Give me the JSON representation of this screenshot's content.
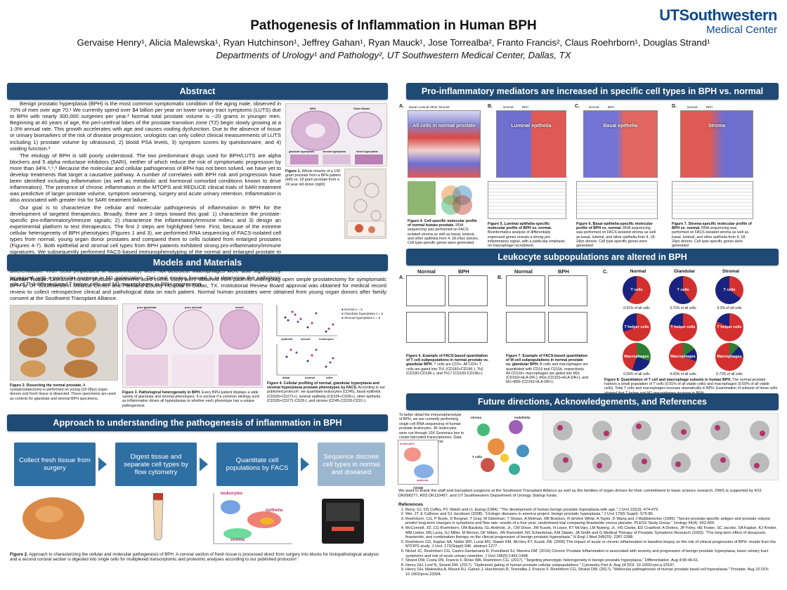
{
  "header": {
    "title": "Pathogenesis of Inflammation in Human BPH",
    "authors": "Gervaise Henry¹, Alicia Malewska¹, Ryan Hutchinson¹, Jeffrey Gahan¹, Ryan Mauck¹, Jose Torrealba², Franto Francis², Claus Roehrborn¹, Douglas Strand¹",
    "departments": "Departments of Urology¹ and Pathology², UT Southwestern Medical Center, Dallas, TX",
    "logo_line1": "UTSouthwestern",
    "logo_line2": "Medical Center"
  },
  "colors": {
    "banner": "#1f4a73",
    "flow": "#2e6fa4",
    "logo": "#0b4a8b"
  },
  "abstract": {
    "heading": "Abstract",
    "p1": "Benign prostatic hyperplasia (BPH) is the most common symptomatic condition of the aging male, observed in 70% of men over age 70.¹ We currently spend over $4 billion per year on lower urinary tract symptoms (LUTS) due to BPH with nearly 300,000 surgeries per year.² Normal total prostate volume is ~20 grams in younger men. Beginning at 40 years of age, the peri-urethral lobes of the prostate transition zone (TZ) begin slowly growing at a 1-3% annual rate. This growth accelerates with age and causes voiding dysfunction. Due to the absence of tissue or urinary biomarkers of the risk of disease progression, urologists can only collect clinical measurements of LUTS including 1) prostate volume by ultrasound, 2) blood PSA levels, 3) symptom scores by questionnaire, and 4) voiding function.³",
    "p2": "The etiology of BPH is still poorly understood. The two predominant drugs used for BPH/LUTS are alpha blockers and 5 alpha reductase inhibitors (5ARI), neither of which reduce the risk of symptomatic progression by more than 34%.⁴,⁵,⁶ Because the molecular and cellular pathogenesis of BPH has not been solved, we have yet to develop treatments that target a causative pathway. A number of correlates with BPH risk and progression have been identified including inflammation (as well as metabolic and hormonal comorbid conditions known to drive inflammation). The presence of chronic inflammation in the MTOPS and REDUCE clinical trials of 5ARI treatment was predictive of larger prostate volume, symptom worsening, surgery and acute urinary retention. Inflammation is also associated with greater risk for 5ARI treatment failure.",
    "p3": "Our goal is to characterize the cellular and molecular pathogenesis of inflammation in BPH for the development of targeted therapeutics. Broadly, there are 3 steps toward this goal: 1) characterize the prostate-specific pro-inflammatory/immune signals; 2) characterize the inflammatory/immune milieu; and 3) design an experimental platform to test therapeutics. The first 2 steps are highlighted here. First, because of the extreme cellular heterogeneity of BPH phenotypes (Figures 1 and 3), we performed RNA sequencing of FACS-isolated cell types from normal, young organ donor prostates and compared them to cells isolated from enlarged prostates (Figures 4-7). Both epithelial and stromal cell types from BPH patients exhibited strong pro-inflammatory/immune signatures. We subsequently performed FACS-based immunophenotyping of the normal and enlarged prostate to determine the percent composition of the pro-inflammatory mediators and the actual inflammatory/immune environment. These data show a significant increase in total CD4 T cells, with a particular increase in Th2 differentiation. Th17 cells (implicated in autoimmunity) were not detected. Macrophages were also significantly increased, with a particular increase in M1 polarization. Our goal moving forward is to determine the pathologic role of Th2 differentiated T helper cells and M1 macrophages in BPH progression.",
    "fig1_caption_bold": "Figure 1.",
    "fig1_caption": "Whole mounts of a 130 gram prostate from a BPH patient (left) vs. 18 gram prostate from a 24 year old donor (right)",
    "fig1_labels": [
      "glandular hyperplasia",
      "stromal hyperplasia",
      "BPH",
      "Older Model",
      "mixed hyperplasia"
    ]
  },
  "methods": {
    "heading": "Models and Materials",
    "tissue_label": "Human Tissue:",
    "tissue_text": "Diseased human prostate specimens used in this study were obtained from patients undergoing open simple prostatectomy for symptomatic BPH at UT Southwestern Medical Center and Parkland County Hospital in Dallas, TX. Institutional Review Board approval was obtained for medical record review to collect retrospective clinical and pathological data on each patient. Normal human prostates were obtained from young organ donors after family consent at the Southwest Transplant Alliance.",
    "fig2_caption_bold": "Figure 2. Dissecting the normal prostate.",
    "fig2_caption": "A cystoprostatectomy is performed on young (18-28yo) organ donors and fresh tissue is dissected. These specimens are used as controls for glandular and stromal BPH specimens.",
    "fig3_caption_bold": "Figure 3. Pathological heterogeneity in BPH.",
    "fig3_caption": "Every BPH patient displays a wide variety of glandular and stromal phenotypes. It is unclear if a common etiology such as inflammation drives all hyperplasias or whether each phenotype has a unique pathogenesis.",
    "fig3_labels": [
      "pure glandular",
      "pure stromal",
      "mixed"
    ],
    "fig4_caption_bold": "Figure 4. Cellular profiling of normal, glandular hyperplasia and stromal hyperplasia prostate phenotypes by FACS.",
    "fig4_caption": "According to our published protocol⁶, we quantitate leukocytes (CD45), basal epithelia (CD326+CD271+), luminal epithelia (CD326+CD26+), other epithelia (CD326+CD271-CD26-), and stroma (CD45-CD326-CD31-).",
    "legend": [
      "Normal n = 6",
      "Glandular hyperplasia n = 6",
      "Stromal hyperplasia n = 6"
    ],
    "chart_axes": [
      "epithelia",
      "stroma",
      "leukocytes",
      "basal",
      "luminal",
      "other"
    ]
  },
  "approach": {
    "heading": "Approach to understanding the pathogenesis of inflammation in BPH",
    "steps": [
      "Collect fresh tissue from surgery",
      "Digest tissue and separate cell types by flow cytometry",
      "Quantitate cell populations by FACS",
      "Sequence discrete cell types in normal and diseased"
    ],
    "facs_labels": [
      "leukocytes",
      "epithelia",
      "stroma"
    ],
    "fig_caption_bold": "Figure 2.",
    "fig_caption": "Approach to characterizing the cellular and molecular pathogenesis of BPH. A coronal section of fresh tissue is processed direct from surgery into blocks for histopathological analysis and a second coronal section is digested into single cells for multiplexed transcriptomic and proteomic analyses according to our published protocols⁶."
  },
  "mediators": {
    "heading": "Pro-inflammatory mediators are increased in specific cell types in BPH vs. normal",
    "panels": [
      {
        "letter": "A.",
        "cols": "Basal   Luminal   Other   Stromal",
        "overlay": "All cells in normal prostate"
      },
      {
        "letter": "B.",
        "cols": "Normal          BPH",
        "overlay": "Luminal epithelia"
      },
      {
        "letter": "C.",
        "cols": "Normal          BPH",
        "overlay": "Basal epithelia"
      },
      {
        "letter": "D.",
        "cols": "Normal          BPH",
        "overlay": "Stroma"
      }
    ],
    "captions": [
      {
        "bold": "Figure 4. Cell-specific molecular profile of normal human prostate.",
        "text": "RNA sequencing was performed on FACS-isolated stroma as well as basal, luminal, and other epithelia from 4, 18-24yo donors. Cell type-specific genes were generated"
      },
      {
        "bold": "Figure 5. Luminal epithelia-specific molecular profile of BPH vs. normal.",
        "text": "Bioinformatics analysis of differentially expressed genes reveals a strong pro-inflammatory signal, with a particular emphasis on macrophage recruitment."
      },
      {
        "bold": "Figure 6. Basal epithelia-specific molecular profile of BPH vs. normal.",
        "text": "RNA sequencing was performed on FACS-isolated stroma as well as basal, luminal, and other epithelia from 4, 18-24yo donors. Cell type-specific genes were generated"
      },
      {
        "bold": "Figure 7. Stroma-specific molecular profile of BPH vs. normal.",
        "text": "RNA sequencing was performed on FACS-isolated stroma as well as basal, luminal, and other epithelia from 4, 18-24yo donors. Cell type-specific genes were generated"
      }
    ]
  },
  "leukocytes": {
    "heading": "Leukocyte subpopulations are altered in BPH",
    "panelA": {
      "letter": "A.",
      "normal": "Normal",
      "bph": "BPH"
    },
    "panelB": {
      "letter": "B.",
      "normal": "Normal",
      "bph": "BPH"
    },
    "panelC": {
      "letter": "C.",
      "cols": [
        "Normal",
        "Glandular",
        "Stromal"
      ]
    },
    "pie_rows": [
      {
        "label": "T cells",
        "caps": [
          "0.91% of all cells",
          "3.72% of all cells",
          "6.3% of all cells"
        ]
      },
      {
        "label": "T helper cells",
        "caps": [
          "",
          "",
          ""
        ]
      },
      {
        "label": "Macrophages",
        "caps": [
          "0.59% of all cells",
          "4.43% of all cells",
          "6.73% of all cells"
        ]
      }
    ],
    "fig6_bold": "Figure 6. Example of FACS-based quantitation of T cell subpopulations in normal prostate vs. glandular BPH.",
    "fig6_text": "T cells are CD3+. All CD3+ T cells are gated into Th1 (CD183+CD196-), Th2 (CD183-CD196-), and Th17 (CD183-CD196+).",
    "fig7_bold": "Figure 7. Example of FACS-based quantitation of M cell subpopulations in normal prostate vs. glandular BPH.",
    "fig7_text": "B cells and macrophages are quantitated with CD19 and CD11b, respectively. All CD11b+ macrophages are gated into M2c (CD163+HLA-DR-), M2a (CD163+HLA-DR+), and M1+M2b (CD163-HLA-DR+).",
    "fig8_bold": "Figure 8. Quantitation of T cell and macrophage subsets in human BPH.",
    "fig8_text": "The normal prostate harbors a small population of T cells (0.91% of all viable cells) and macrophages (0.59% of all viable cells). Total T cells and macrophages increase dramatically in BPH. Examination of subsets of these cells showed that T helper and M1 macrophages increase in BPH."
  },
  "future": {
    "heading": "Future directions, Acknowledgements, and References",
    "intro": "To better detail the immunophenotype of BPH, we are currently performing single cell RNA sequencing of human prostate leukocytes. 3K leukocytes were run through 10X Genomics box to create barcoded transcriptomes. Data were analyzed with Seurat.",
    "clusters": [
      "stroma",
      "endothelia",
      "T cells",
      "leukocytes",
      "epithelia"
    ],
    "axes": [
      "CD326",
      "CD45"
    ],
    "ack": "We want to thank the staff and transplant surgeons at the Southwest Transplant Alliance as well as the families of organ donors for their commitment to basic science research. DWS is supported by K01 DK098277, R03 DK110497, and UT Southwestern Department of Urology Startup funds.",
    "ref_heading": "References",
    "refs": [
      "Berry, SJ, DS Coffey, PC Walsh and LL Ewing (1984). \"The development of human benign prostatic hyperplasia with age.\" J Urol 132(3): 474-479.",
      "Wei, JT, E Calhoun and SJ Jacobsen (2008). \"Urologic diseases in america project: benign prostatic hyperplasia.\" J Urol 179(5 Suppl): S75-80.",
      "Roehrborn, CG, P Boyle, D Bergner, T Gray, M Gittelman, T Shown, A Melman, RB Bracken, R deVere White, A Taylor, D Wang and J Waldstreicher (1999). \"Serum prostate-specific antigen and prostate volume predict long-term changes in symptoms and flow rate: results of a four-year, randomized trial comparing finasteride versus placebo. PLESS Study Group.\" Urology 54(4): 662-669.",
      "McConnell, JD, CG Roehrborn, OM Bautista, GL Andriole, Jr., CM Dixon, JW Kusek, H Lepor, KT McVary, LM Nyberg, Jr., HS Clarke, ED Crawford, A Diokno, JP Foley, HE Foster, SC Jacobs, SA Kaplan, KJ Kreder, MM Lieber, MS Lucia, GJ Miller, M Menon, DF Milam, JW Ramsdell, NS Schenkman, KM Slawin, JA Smith and G Medical Therapy of Prostatic Symptoms Research (2003). \"The long-term effect of doxazosin, finasteride, and combination therapy on the clinical progression of benign prostatic hyperplasia.\" N Engl J Med 349(25): 2387-2398.",
      "Roehrborn CG, Kaplan SA, Noble WD, Lucia MS, Slawin KM, McVary KT, Kusek JW. (2005) The impact of acute or chronic inflammation in baseline biopsy on the risk of clinical progression of BPH: results from the MTOPS study. J Urol. 173(Suppl):346. abstract 1277.",
      "Nickel JC, Roehrborn CG, Castro-Santamaria R, Freedland SJ, Moreira DM. (2016) Chronic Prostate Inflammation is associated with severity and progression of benign prostatic hyperplasia, lower urinary tract symptoms and risk of acute urinary retention. J Urol.196(5):1493-1498.",
      "Strand DW, Costa DN, Francis F, Ricke WA, Roehrborn CG. (2017). \"Targeting phenotypic heterogeneity in benign prostatic hyperplasia.\" Differentiation. Aug 4;96:49-61.",
      "Henry GH, Loof N, Strand DW. (2017). \"Optimized gating of human prostate cellular subpopulations.\" Cytometry Part A. Aug 18 DOI: 10.1002/cyto.a.23187.",
      "Henry GH, Malewska A, Mauck RJ, Gahan J, Hutchinson R, Torrealba J, Francis F, Roehrborn CG, Strand DW. (2017). \"Molecular pathogenesis of human prostate basal cell hyperplasia.\" Prostate. Aug 10 DOI: 10.1002/pros.23394."
    ]
  }
}
